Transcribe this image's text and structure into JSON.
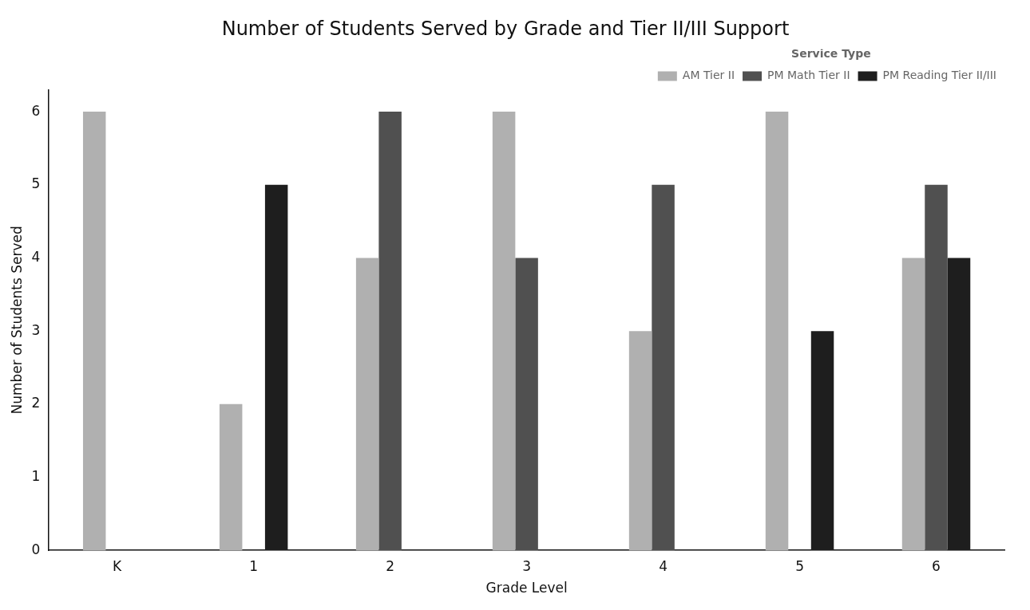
{
  "chart_data": {
    "type": "bar",
    "title": "Number of Students Served by Grade and Tier II/III Support",
    "xlabel": "Grade Level",
    "ylabel": "Number of Students Served",
    "legend_title": "Service Type",
    "categories": [
      "K",
      "1",
      "2",
      "3",
      "4",
      "5",
      "6"
    ],
    "series": [
      {
        "name": "AM Tier II",
        "color": "#b0b0b0",
        "values": [
          6,
          2,
          4,
          6,
          3,
          6,
          4
        ]
      },
      {
        "name": "PM Math Tier II",
        "color": "#505050",
        "values": [
          null,
          null,
          6,
          4,
          5,
          null,
          5
        ]
      },
      {
        "name": "PM Reading Tier II/III",
        "color": "#1e1e1e",
        "values": [
          null,
          5,
          null,
          null,
          null,
          3,
          4
        ]
      }
    ],
    "ylim": [
      0,
      6.3
    ],
    "yticks": [
      0,
      1,
      2,
      3,
      4,
      5,
      6
    ],
    "grid": false,
    "legend": "top right"
  }
}
